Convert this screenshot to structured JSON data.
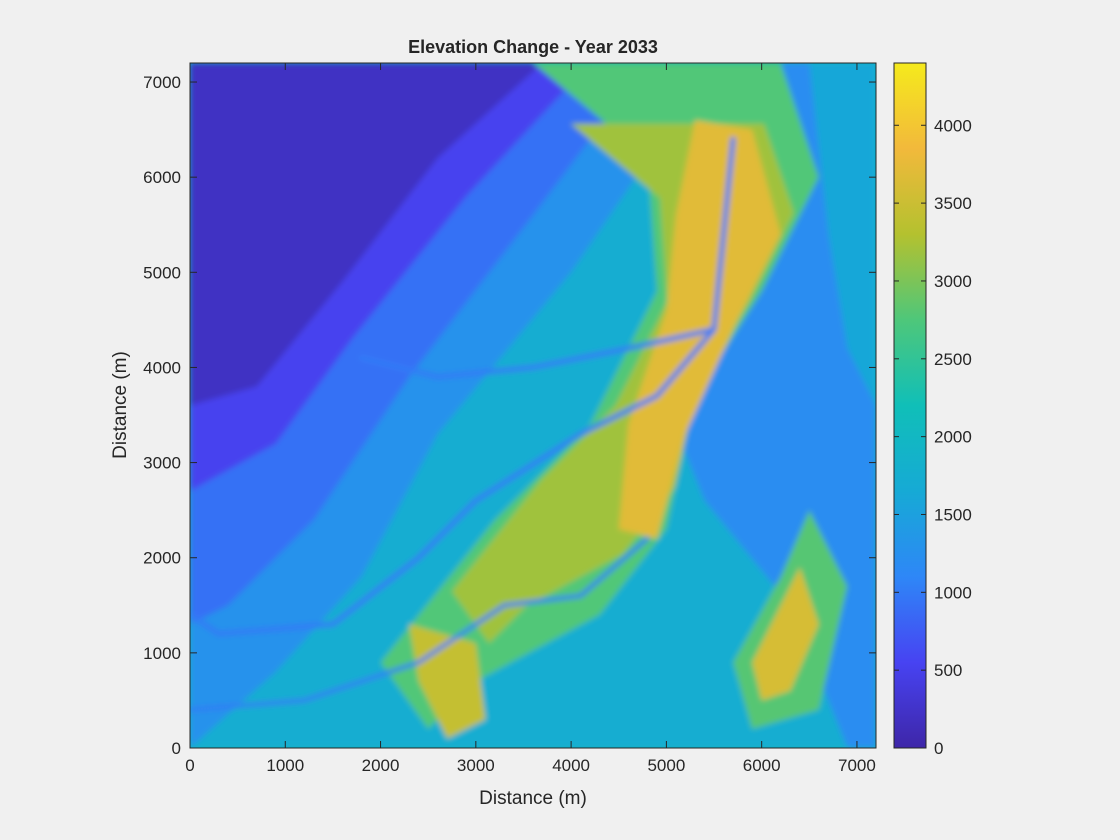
{
  "chart_data": {
    "type": "heatmap",
    "title": "Elevation Change - Year 2033",
    "xlabel": "Distance (m)",
    "ylabel": "Distance (m)",
    "xlim": [
      0,
      7200
    ],
    "ylim": [
      0,
      7200
    ],
    "x_ticks": [
      0,
      1000,
      2000,
      3000,
      4000,
      5000,
      6000,
      7000
    ],
    "y_ticks": [
      0,
      1000,
      2000,
      3000,
      4000,
      5000,
      6000,
      7000
    ],
    "colorbar": {
      "range": [
        0,
        4400
      ],
      "ticks": [
        0,
        500,
        1000,
        1500,
        2000,
        2500,
        3000,
        3500,
        4000
      ],
      "colormap": "parula",
      "colormap_stops": [
        "#3e26a8",
        "#4743f2",
        "#2e87f7",
        "#16aad5",
        "#10bfb8",
        "#4ec77a",
        "#b4c12f",
        "#f2b93b",
        "#f5ea1c"
      ]
    },
    "grid": false,
    "approx_features": {
      "lowland_northwest_elevation": 200,
      "main_ridge_crest_elevation": 3700,
      "eastern_valley_elevation": 1200,
      "southeast_ridge_crest_elevation": 3600,
      "southern_plain_elevation": 2000
    }
  }
}
